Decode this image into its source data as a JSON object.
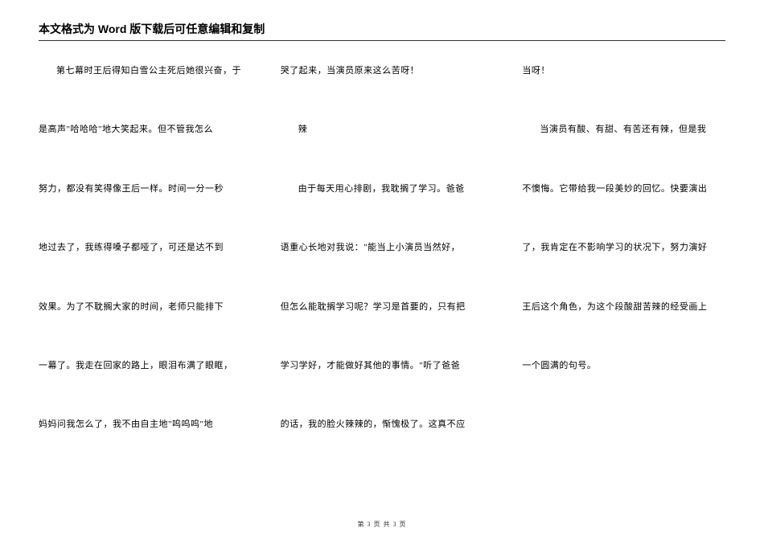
{
  "header": {
    "title": "本文格式为 Word 版下载后可任意编辑和复制"
  },
  "columns": {
    "col1": {
      "lines": [
        "第七幕时王后得知白雪公主死后她很兴奋，于",
        "是高声\"哈哈哈\"地大笑起来。但不管我怎么",
        "努力，都没有笑得像王后一样。时间一分一秒",
        "地过去了，我练得嗓子都哑了，可还是达不到",
        "效果。为了不耽搁大家的时间，老师只能排下",
        "一幕了。我走在回家的路上，眼泪布满了眼眶，",
        "妈妈问我怎么了，我不由自主地\"呜呜呜\"地"
      ]
    },
    "col2": {
      "lines": [
        "哭了起来，当演员原来这么苦呀！",
        "辣",
        "由于每天用心排剧，我耽搁了学习。爸爸",
        "语重心长地对我说：\"能当上小演员当然好，",
        "但怎么能耽搁学习呢？学习是首要的，只有把",
        "学习学好，才能做好其他的事情。\"听了爸爸",
        "的话，我的脸火辣辣的，惭愧极了。这真不应"
      ]
    },
    "col3": {
      "lines": [
        "当呀！",
        "当演员有酸、有甜、有苦还有辣，但是我",
        "不懊悔。它带给我一段美妙的回忆。快要演出",
        "了，我肯定在不影响学习的状况下，努力演好",
        "王后这个角色，为这个段酸甜苦辣的经受画上",
        "一个圆满的句号。"
      ]
    }
  },
  "footer": {
    "text": "第 3 页 共 3 页"
  },
  "styles": {
    "page_bg": "#ffffff",
    "text_color": "#000000",
    "title_fontsize": 14,
    "body_fontsize": 11,
    "line_gap": 58,
    "column_gap": 48,
    "divider_color": "#333333"
  }
}
